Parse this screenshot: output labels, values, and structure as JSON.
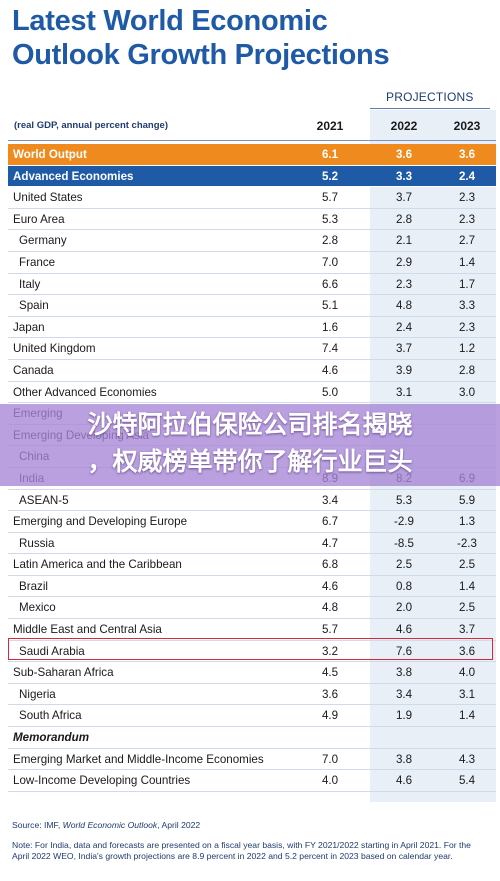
{
  "title_line1": "Latest World Economic",
  "title_line2": "Outlook Growth Projections",
  "projections_label": "PROJECTIONS",
  "units": "(real GDP, annual percent change)",
  "years": [
    "2021",
    "2022",
    "2023"
  ],
  "rows": [
    {
      "label": "World Output",
      "v": [
        "6.1",
        "3.6",
        "3.6"
      ],
      "style": "world"
    },
    {
      "label": "Advanced Economies",
      "v": [
        "5.2",
        "3.3",
        "2.4"
      ],
      "style": "advanced"
    },
    {
      "label": "United States",
      "v": [
        "5.7",
        "3.7",
        "2.3"
      ],
      "style": ""
    },
    {
      "label": "Euro Area",
      "v": [
        "5.3",
        "2.8",
        "2.3"
      ],
      "style": ""
    },
    {
      "label": "Germany",
      "v": [
        "2.8",
        "2.1",
        "2.7"
      ],
      "style": "indent"
    },
    {
      "label": "France",
      "v": [
        "7.0",
        "2.9",
        "1.4"
      ],
      "style": "indent"
    },
    {
      "label": "Italy",
      "v": [
        "6.6",
        "2.3",
        "1.7"
      ],
      "style": "indent"
    },
    {
      "label": "Spain",
      "v": [
        "5.1",
        "4.8",
        "3.3"
      ],
      "style": "indent"
    },
    {
      "label": "Japan",
      "v": [
        "1.6",
        "2.4",
        "2.3"
      ],
      "style": ""
    },
    {
      "label": "United Kingdom",
      "v": [
        "7.4",
        "3.7",
        "1.2"
      ],
      "style": ""
    },
    {
      "label": "Canada",
      "v": [
        "4.6",
        "3.9",
        "2.8"
      ],
      "style": ""
    },
    {
      "label": "Other Advanced Economies",
      "v": [
        "5.0",
        "3.1",
        "3.0"
      ],
      "style": ""
    },
    {
      "label": "Emerging",
      "v": [
        "",
        "",
        ""
      ],
      "style": ""
    },
    {
      "label": "Emerging Developing Asia",
      "v": [
        "",
        "",
        ""
      ],
      "style": ""
    },
    {
      "label": "China",
      "v": [
        "",
        "",
        ""
      ],
      "style": "indent"
    },
    {
      "label": "India",
      "v": [
        "8.9",
        "8.2",
        "6.9"
      ],
      "style": "indent"
    },
    {
      "label": "ASEAN-5",
      "v": [
        "3.4",
        "5.3",
        "5.9"
      ],
      "style": "indent"
    },
    {
      "label": "Emerging and Developing Europe",
      "v": [
        "6.7",
        "-2.9",
        "1.3"
      ],
      "style": ""
    },
    {
      "label": "Russia",
      "v": [
        "4.7",
        "-8.5",
        "-2.3"
      ],
      "style": "indent"
    },
    {
      "label": "Latin America and the Caribbean",
      "v": [
        "6.8",
        "2.5",
        "2.5"
      ],
      "style": ""
    },
    {
      "label": "Brazil",
      "v": [
        "4.6",
        "0.8",
        "1.4"
      ],
      "style": "indent"
    },
    {
      "label": "Mexico",
      "v": [
        "4.8",
        "2.0",
        "2.5"
      ],
      "style": "indent"
    },
    {
      "label": "Middle East and Central Asia",
      "v": [
        "5.7",
        "4.6",
        "3.7"
      ],
      "style": ""
    },
    {
      "label": "Saudi Arabia",
      "v": [
        "3.2",
        "7.6",
        "3.6"
      ],
      "style": "indent"
    },
    {
      "label": "Sub-Saharan Africa",
      "v": [
        "4.5",
        "3.8",
        "4.0"
      ],
      "style": ""
    },
    {
      "label": "Nigeria",
      "v": [
        "3.6",
        "3.4",
        "3.1"
      ],
      "style": "indent"
    },
    {
      "label": "South Africa",
      "v": [
        "4.9",
        "1.9",
        "1.4"
      ],
      "style": "indent"
    },
    {
      "label": "Memorandum",
      "v": [
        "",
        "",
        ""
      ],
      "style": "memo"
    },
    {
      "label": "Emerging Market and Middle-Income Economies",
      "v": [
        "7.0",
        "3.8",
        "4.3"
      ],
      "style": ""
    },
    {
      "label": "Low-Income Developing Countries",
      "v": [
        "4.0",
        "4.6",
        "5.4"
      ],
      "style": ""
    }
  ],
  "overlay_line1": "沙特阿拉伯保险公司排名揭晓",
  "overlay_line2": "，权威榜单带你了解行业巨头",
  "source_prefix": "Source: IMF, ",
  "source_italic": "World Economic Outlook",
  "source_suffix": ", April 2022",
  "note": "Note: For India, data and forecasts are presented on a fiscal year basis, with FY 2021/2022 starting in April 2021. For the April 2022 WEO, India's growth projections are 8.9 percent in 2022 and 5.2 percent in 2023 based on calendar year."
}
